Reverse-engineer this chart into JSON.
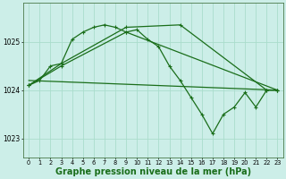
{
  "background_color": "#cceee8",
  "plot_bg_color": "#cceee8",
  "grid_color": "#aaddcc",
  "line_color": "#1a6e1a",
  "xlabel": "Graphe pression niveau de la mer (hPa)",
  "xlabel_fontsize": 7.0,
  "ylim": [
    1022.6,
    1025.8
  ],
  "yticks": [
    1023,
    1024,
    1025
  ],
  "xticks": [
    0,
    1,
    2,
    3,
    4,
    5,
    6,
    7,
    8,
    9,
    10,
    11,
    12,
    13,
    14,
    15,
    16,
    17,
    18,
    19,
    20,
    21,
    22,
    23
  ],
  "xlim": [
    -0.5,
    23.5
  ],
  "series": [
    {
      "x": [
        0,
        1,
        2,
        3,
        4,
        5,
        6,
        7,
        8,
        9,
        10,
        11,
        12,
        13,
        14,
        15,
        16,
        17,
        18,
        19,
        20,
        21,
        22,
        23
      ],
      "y": [
        1024.1,
        1024.2,
        1024.5,
        1024.55,
        1025.05,
        1025.2,
        1025.3,
        1025.35,
        1025.3,
        1025.2,
        1025.25,
        1025.05,
        1024.9,
        1024.5,
        1024.2,
        1023.85,
        1023.5,
        1023.1,
        1023.5,
        1023.65,
        1023.95,
        1023.65,
        1024.0,
        1024.0
      ],
      "marker": "+",
      "lw": 0.9,
      "ms": 3.5
    },
    {
      "x": [
        0,
        3,
        9,
        14,
        22,
        23
      ],
      "y": [
        1024.1,
        1024.55,
        1025.3,
        1025.35,
        1024.0,
        1024.0
      ],
      "marker": "+",
      "lw": 0.9,
      "ms": 3.5
    },
    {
      "x": [
        0,
        3,
        9,
        23
      ],
      "y": [
        1024.1,
        1024.5,
        1025.2,
        1024.0
      ],
      "marker": "+",
      "lw": 0.9,
      "ms": 3.5
    },
    {
      "x": [
        0,
        23
      ],
      "y": [
        1024.2,
        1024.0
      ],
      "marker": null,
      "lw": 0.9,
      "ms": 0
    }
  ]
}
